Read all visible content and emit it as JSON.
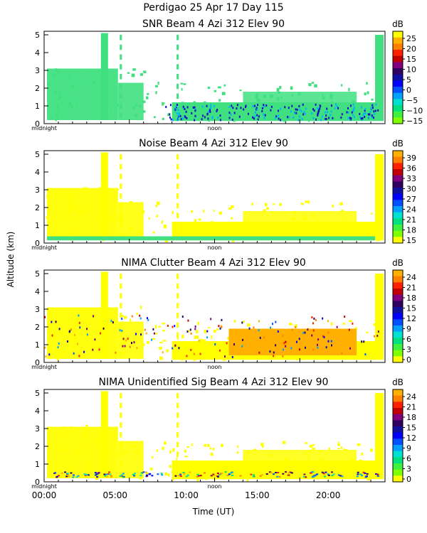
{
  "header": {
    "title": "Perdigao   25 Apr 17 Day 115"
  },
  "y_axis_label": "Altitude (km)",
  "x_axis_label": "Time (UT)",
  "x_tick_labels": [
    "00:00",
    "05:00",
    "10:00",
    "15:00",
    "20:00"
  ],
  "x_minor_labels": {
    "midnight": "midnight",
    "noon": "noon"
  },
  "y_tick_labels": [
    "0",
    "1",
    "2",
    "3",
    "4",
    "5"
  ],
  "chart_data": [
    {
      "type": "heatmap",
      "title": "SNR Beam 4 Azi 312 Elev 90",
      "units": "dB",
      "xlabel": "Time (UT)",
      "ylabel": "Altitude (km)",
      "xlim_hours": [
        0,
        24
      ],
      "ylim_km": [
        0,
        5.2
      ],
      "colorbar_ticks": [
        "25",
        "20",
        "15",
        "10",
        "5",
        "0",
        "−5",
        "−10",
        "−15"
      ],
      "colorbar_colors": [
        "#ffff00",
        "#ffb000",
        "#ff8000",
        "#ff2000",
        "#c00000",
        "#800080",
        "#300060",
        "#1010a0",
        "#0000ff",
        "#0050ff",
        "#00a0ff",
        "#00e0d0",
        "#00e080",
        "#40f040",
        "#80ff00"
      ],
      "dominant_color": "#40e080"
    },
    {
      "type": "heatmap",
      "title": "Noise Beam 4 Azi 312 Elev 90",
      "units": "dB",
      "xlabel": "Time (UT)",
      "ylabel": "Altitude (km)",
      "xlim_hours": [
        0,
        24
      ],
      "ylim_km": [
        0,
        5.2
      ],
      "colorbar_ticks": [
        "39",
        "36",
        "33",
        "30",
        "27",
        "24",
        "21",
        "18",
        "15"
      ],
      "colorbar_colors": [
        "#ffb000",
        "#ff8000",
        "#ff2000",
        "#c00000",
        "#800080",
        "#300060",
        "#1010a0",
        "#0000ff",
        "#0050ff",
        "#00a0ff",
        "#00e0d0",
        "#00e080",
        "#40f040",
        "#80ff00",
        "#ffff00"
      ],
      "dominant_color": "#ffff00"
    },
    {
      "type": "heatmap",
      "title": "NIMA Clutter Beam 4 Azi 312 Elev 90",
      "units": "dB",
      "xlabel": "Time (UT)",
      "ylabel": "Altitude (km)",
      "xlim_hours": [
        0,
        24
      ],
      "ylim_km": [
        0,
        5.2
      ],
      "colorbar_ticks": [
        "24",
        "21",
        "18",
        "15",
        "12",
        "9",
        "6",
        "3",
        "0"
      ],
      "colorbar_colors": [
        "#ffb000",
        "#ff8000",
        "#ff2000",
        "#c00000",
        "#800080",
        "#300060",
        "#1010a0",
        "#0000ff",
        "#0050ff",
        "#00a0ff",
        "#00e0d0",
        "#00e080",
        "#40f040",
        "#80ff00",
        "#ffff00"
      ],
      "dominant_color": "#ffff00"
    },
    {
      "type": "heatmap",
      "title": "NIMA Unidentified Sig Beam 4 Azi 312 Elev 90",
      "units": "dB",
      "xlabel": "Time (UT)",
      "ylabel": "Altitude (km)",
      "xlim_hours": [
        0,
        24
      ],
      "ylim_km": [
        0,
        5.2
      ],
      "colorbar_ticks": [
        "24",
        "21",
        "18",
        "15",
        "12",
        "9",
        "6",
        "3",
        "0"
      ],
      "colorbar_colors": [
        "#ffb000",
        "#ff8000",
        "#ff2000",
        "#c00000",
        "#800080",
        "#300060",
        "#1010a0",
        "#0000ff",
        "#0050ff",
        "#00a0ff",
        "#00e0d0",
        "#00e080",
        "#40f040",
        "#80ff00",
        "#ffff00"
      ],
      "dominant_color": "#ffff00"
    }
  ]
}
